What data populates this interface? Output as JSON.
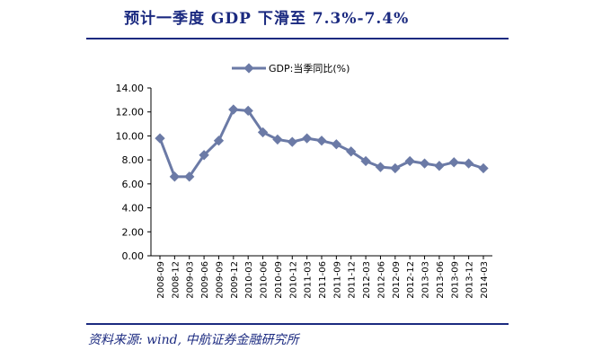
{
  "page": {
    "title": "预计一季度 GDP 下滑至 7.3%-7.4%",
    "source": "资料来源: wind, 中航证券金融研究所"
  },
  "chart_data": {
    "type": "line",
    "categories": [
      "2008-09",
      "2008-12",
      "2009-03",
      "2009-06",
      "2009-09",
      "2009-12",
      "2010-03",
      "2010-06",
      "2010-09",
      "2010-12",
      "2011-03",
      "2011-06",
      "2011-09",
      "2011-12",
      "2012-03",
      "2012-06",
      "2012-09",
      "2012-12",
      "2013-03",
      "2013-06",
      "2013-09",
      "2013-12",
      "2014-03"
    ],
    "series": [
      {
        "name": "GDP:当季同比(%)",
        "values": [
          9.8,
          6.6,
          6.6,
          8.4,
          9.6,
          12.2,
          12.1,
          10.3,
          9.7,
          9.5,
          9.8,
          9.6,
          9.3,
          8.7,
          7.9,
          7.4,
          7.3,
          7.9,
          7.7,
          7.5,
          7.8,
          7.7,
          7.3
        ],
        "color": "#6b7aa6"
      }
    ],
    "yticks": [
      "14.00",
      "12.00",
      "10.00",
      "8.00",
      "6.00",
      "4.00",
      "2.00",
      "0.00"
    ],
    "ylim": [
      0,
      14
    ],
    "grid": false,
    "legend_position": "top-center"
  }
}
